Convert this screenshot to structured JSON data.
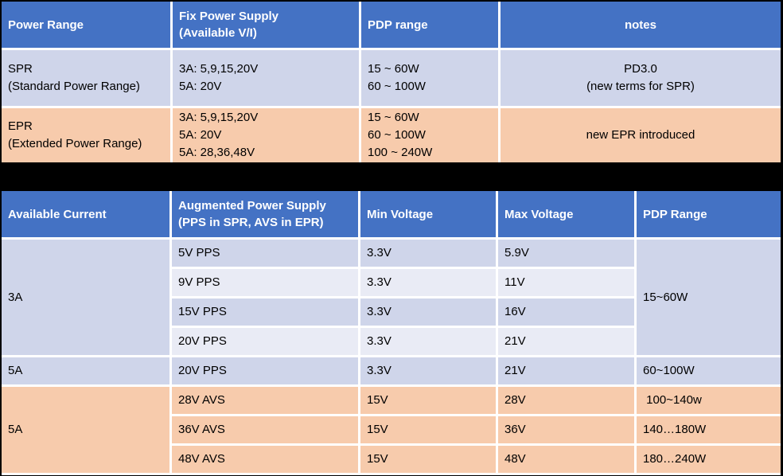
{
  "colors": {
    "header_bg": "#4472c4",
    "band_dark": "#cfd5ea",
    "band_light": "#e9ebf5",
    "peach": "#f7cbac",
    "divider": "#ffffff",
    "page_bg": "#000000",
    "header_text": "#ffffff",
    "body_text": "#000000"
  },
  "table1": {
    "headers": [
      "Power Range",
      "Fix Power Supply\n(Available V/I)",
      "PDP range",
      "notes"
    ],
    "spr": {
      "name": "SPR\n(Standard Power Range)",
      "supply": "3A: 5,9,15,20V\n5A: 20V",
      "pdp": "15 ~ 60W\n60 ~ 100W",
      "notes": "PD3.0\n(new terms for SPR)"
    },
    "epr": {
      "name": "EPR\n(Extended Power Range)",
      "supply": "3A: 5,9,15,20V\n5A: 20V\n5A: 28,36,48V",
      "pdp": "15 ~ 60W\n60 ~ 100W\n100 ~ 240W",
      "notes": "new EPR introduced"
    }
  },
  "table2": {
    "headers": [
      "Available Current",
      "Augmented Power Supply\n(PPS in SPR, AVS in EPR)",
      "Min Voltage",
      "Max Voltage",
      "PDP Range"
    ],
    "group_3a": {
      "current": "3A",
      "pdp": "15~60W",
      "rows": [
        {
          "supply": "5V PPS",
          "min": "3.3V",
          "max": "5.9V"
        },
        {
          "supply": "9V PPS",
          "min": "3.3V",
          "max": "11V"
        },
        {
          "supply": "15V PPS",
          "min": "3.3V",
          "max": "16V"
        },
        {
          "supply": "20V PPS",
          "min": "3.3V",
          "max": "21V"
        }
      ]
    },
    "row_5a_pps": {
      "current": "5A",
      "supply": "20V PPS",
      "min": "3.3V",
      "max": "21V",
      "pdp": "60~100W"
    },
    "group_5a_avs": {
      "current": "5A",
      "rows": [
        {
          "supply": "28V AVS",
          "min": "15V",
          "max": "28V",
          "pdp": " 100~140w"
        },
        {
          "supply": "36V AVS",
          "min": "15V",
          "max": "36V",
          "pdp": "140…180W"
        },
        {
          "supply": "48V AVS",
          "min": "15V",
          "max": "48V",
          "pdp": "180…240W"
        }
      ]
    }
  }
}
